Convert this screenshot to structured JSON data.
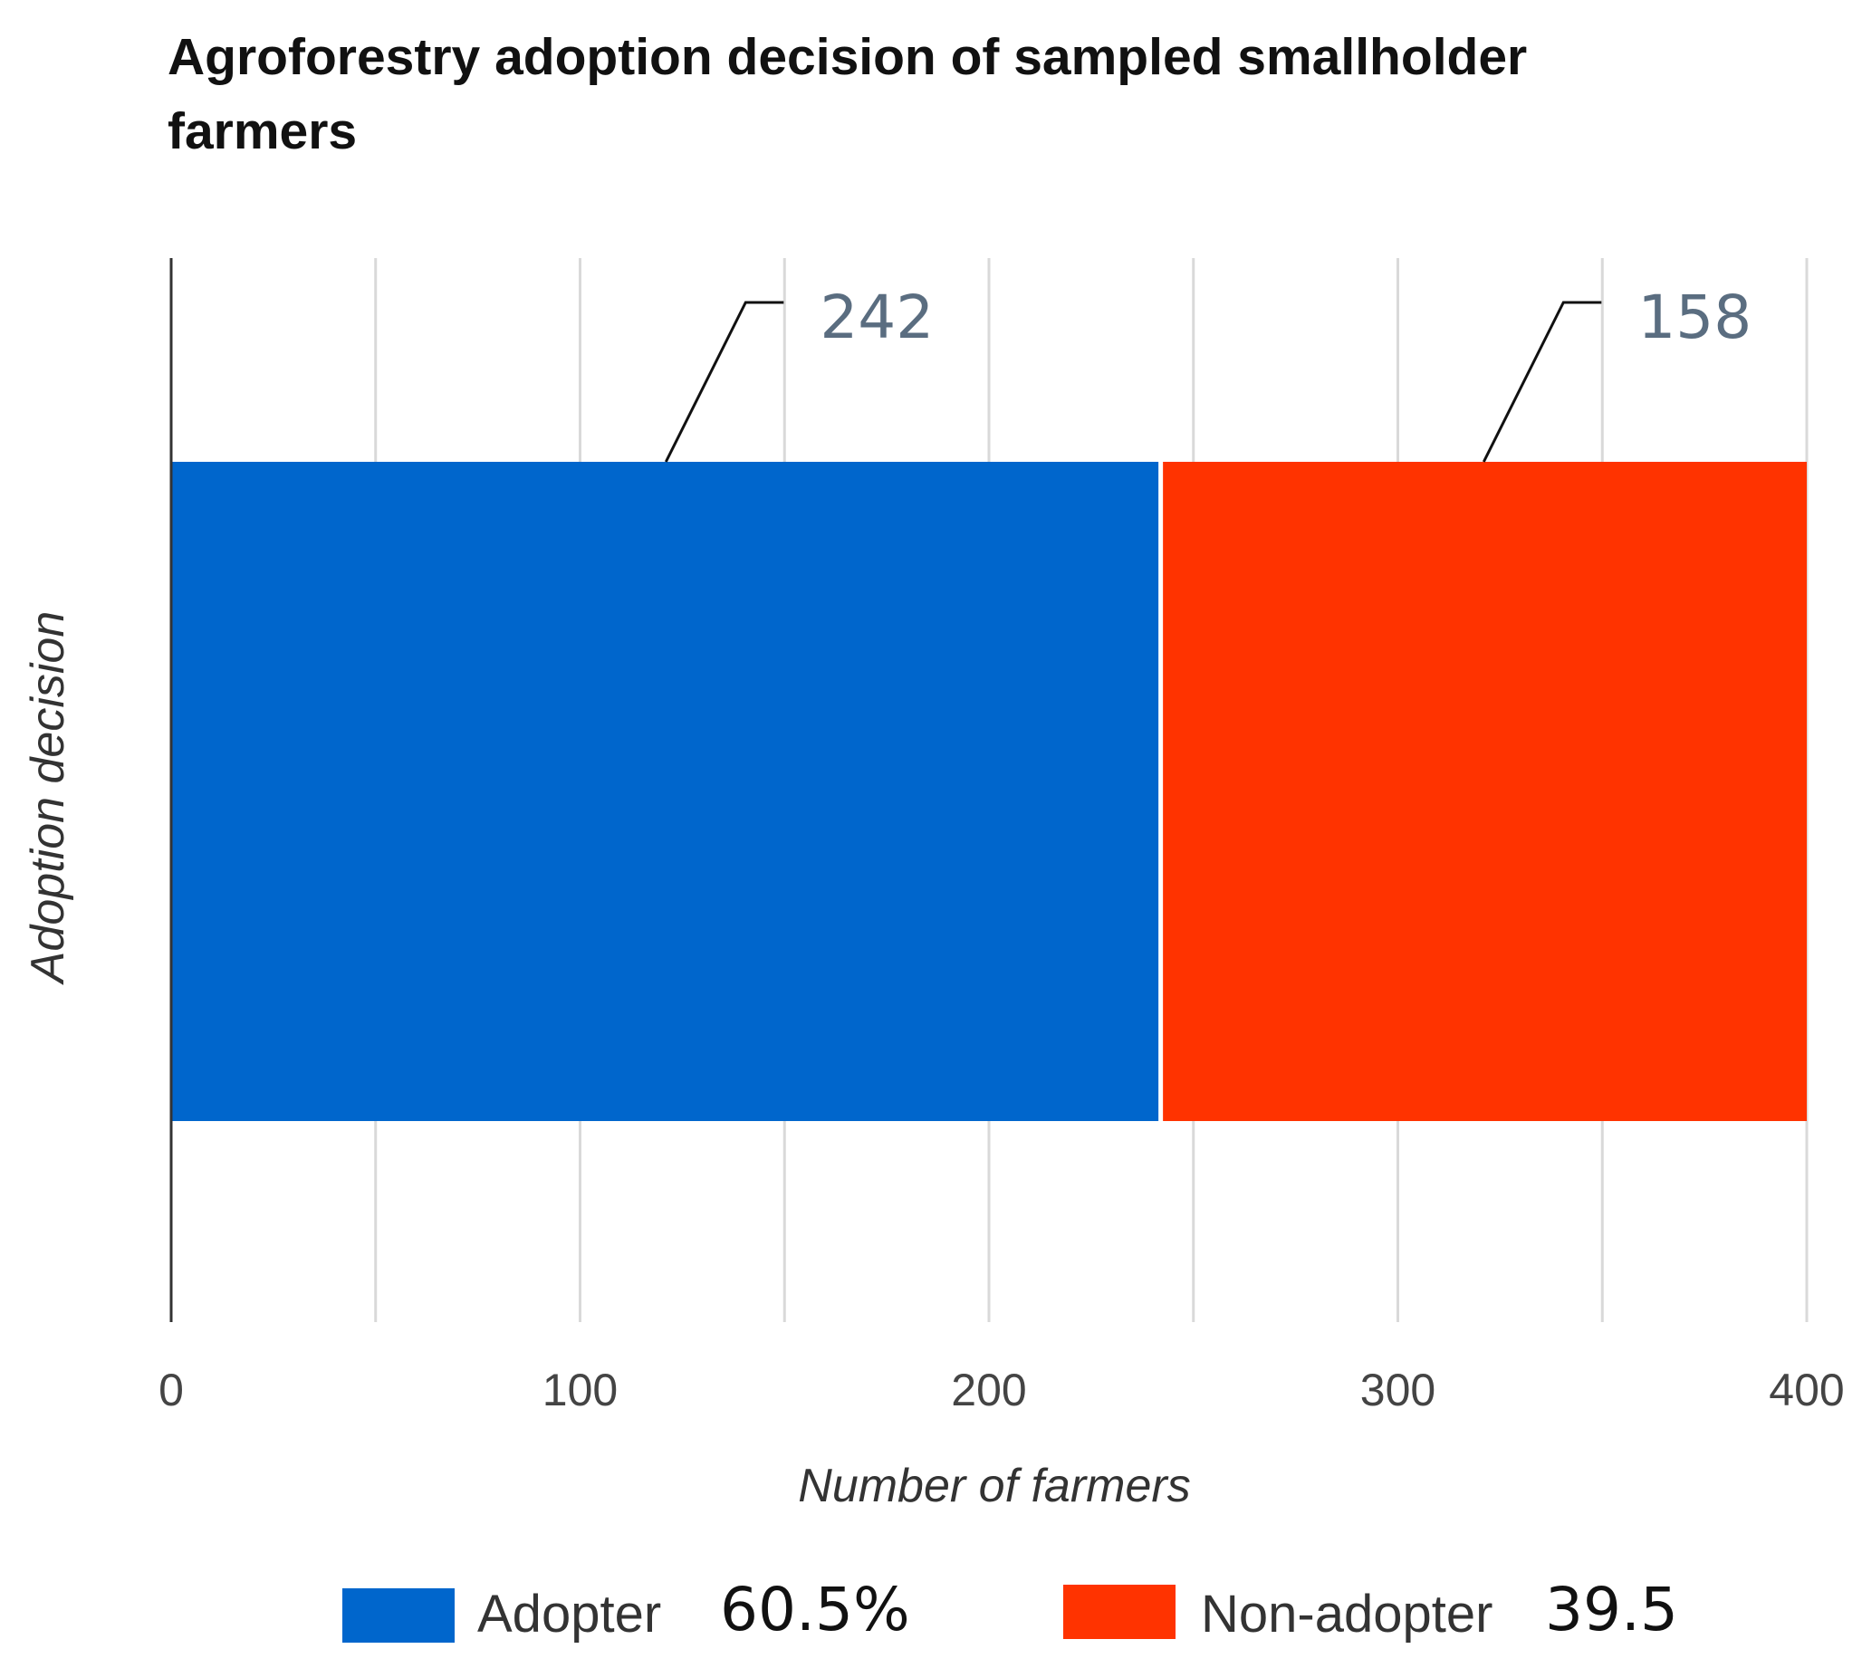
{
  "chart_data": {
    "type": "bar",
    "orientation": "horizontal",
    "stacked": true,
    "title": "Agroforestry adoption decision of sampled smallholder farmers",
    "title_lines": [
      "Agroforestry adoption decision of sampled smallholder",
      "farmers"
    ],
    "xlabel": "Number of farmers",
    "ylabel": "Adoption decision",
    "xlim": [
      0,
      400
    ],
    "x_ticks": [
      0,
      100,
      200,
      300,
      400
    ],
    "x_tick_labels": [
      "0",
      "100",
      "200",
      "300",
      "400"
    ],
    "x_minor_gridlines": [
      50,
      150,
      250,
      350
    ],
    "grid": true,
    "legend_position": "bottom",
    "series": [
      {
        "name": "Adopter",
        "value": 242,
        "data_label": "242",
        "legend_pct": "60.5%",
        "color": "#0066cc"
      },
      {
        "name": "Non-adopter",
        "value": 158,
        "data_label": "158",
        "legend_pct": "39.5",
        "color": "#ff3300"
      }
    ]
  },
  "colors": {
    "gridline": "#d9d9d9",
    "axis": "#333333",
    "leader": "#111111",
    "separator": "#ffffff"
  }
}
